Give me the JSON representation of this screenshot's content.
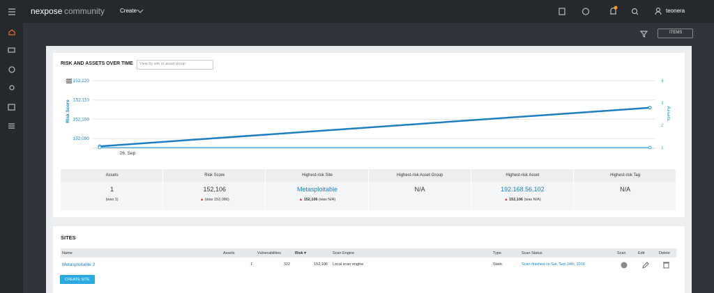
{
  "nav": {
    "brand": "nexpose",
    "brand_suffix": "community",
    "create": "Create",
    "user": "teonera",
    "items": "ITEMS"
  },
  "risk_panel": {
    "title": "RISK AND ASSETS OVER TIME",
    "search_placeholder": "View by site or asset group"
  },
  "chart_data": {
    "type": "line",
    "categories": [
      "26. Sep",
      null
    ],
    "y_label": "Risk Score",
    "y2_label": "Assets",
    "ylim": [
      152085,
      152120
    ],
    "yticks": [
      {
        "value": 152090,
        "label": "152,090"
      },
      {
        "value": 152100,
        "label": "152,100"
      },
      {
        "value": 152110,
        "label": "152,110"
      },
      {
        "value": 152120,
        "label": "152,120"
      }
    ],
    "y2lim": [
      1,
      4
    ],
    "y2ticks": [
      1,
      2,
      3,
      4
    ],
    "grid": true,
    "series": [
      {
        "name": "Risk Score",
        "color": "#1b7fc0",
        "values": [
          152086,
          152106
        ]
      },
      {
        "name": "Assets",
        "color": "#3aaee3",
        "axis": "y2",
        "values": [
          1,
          1
        ]
      }
    ]
  },
  "summary": {
    "cells": [
      {
        "header": "Assets",
        "value": "1",
        "note": "(was 1)"
      },
      {
        "header": "Risk Score",
        "value": "152,106",
        "note": "(was 152,086)"
      },
      {
        "header": "Highest-risk Site",
        "value": "Metasploitable",
        "note_bold": "152,106",
        "note": "(was N/A)"
      },
      {
        "header": "Highest-risk Asset Group",
        "value": "N/A"
      },
      {
        "header": "Highest-risk Asset",
        "value": "192.168.56.102",
        "note_bold": "152,106",
        "note": "(was N/A)"
      },
      {
        "header": "Highest-risk Tag",
        "value": "N/A"
      }
    ]
  },
  "sites": {
    "title": "SITES",
    "headers": [
      "Name",
      "Assets",
      "Vulnerabilities",
      "Risk",
      "Scan Engine",
      "Type",
      "Scan Status",
      "Scan",
      "Edit",
      "Delete"
    ],
    "row": [
      "Metasploitable 2",
      "1",
      "322",
      "152,106",
      "Local scan engine",
      "Static",
      "Scan finished on Sat, Sep 24th, 2016"
    ],
    "button": "CREATE SITE"
  }
}
